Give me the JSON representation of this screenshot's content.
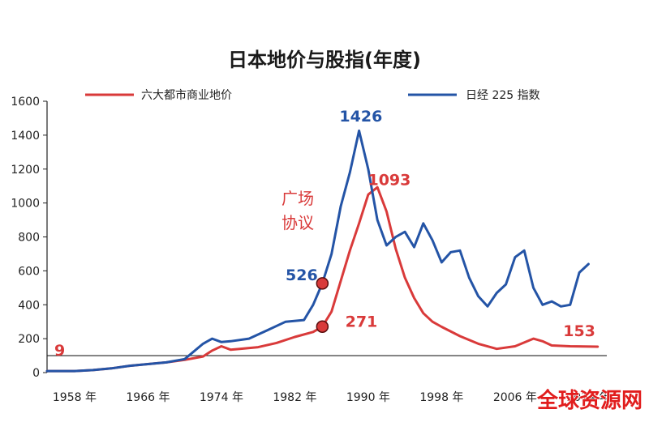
{
  "chart_data": {
    "type": "line",
    "title": "日本地价与股指(年度)",
    "xlabel": "",
    "ylabel": "",
    "ylim": [
      0,
      1600
    ],
    "xlim": [
      1955,
      2016
    ],
    "yticks": [
      "0",
      "200",
      "400",
      "600",
      "800",
      "1000",
      "1200",
      "1400",
      "1600"
    ],
    "xticks": [
      {
        "year": 1958,
        "label": "1958 年"
      },
      {
        "year": 1966,
        "label": "1966 年"
      },
      {
        "year": 1974,
        "label": "1974 年"
      },
      {
        "year": 1982,
        "label": "1982 年"
      },
      {
        "year": 1990,
        "label": "1990 年"
      },
      {
        "year": 1998,
        "label": "1998 年"
      },
      {
        "year": 2006,
        "label": "2006 年"
      },
      {
        "year": 2014,
        "label": "2014 年"
      }
    ],
    "reference_line": 100,
    "grid": false,
    "legend_position": "top",
    "series": [
      {
        "name": "六大都市商业地价",
        "color": "#d93a3a",
        "points": [
          [
            1955,
            9
          ],
          [
            1958,
            9
          ],
          [
            1960,
            15
          ],
          [
            1962,
            25
          ],
          [
            1964,
            40
          ],
          [
            1966,
            50
          ],
          [
            1968,
            60
          ],
          [
            1970,
            75
          ],
          [
            1972,
            95
          ],
          [
            1973,
            130
          ],
          [
            1974,
            155
          ],
          [
            1975,
            135
          ],
          [
            1976,
            140
          ],
          [
            1978,
            150
          ],
          [
            1980,
            175
          ],
          [
            1982,
            210
          ],
          [
            1984,
            240
          ],
          [
            1985,
            271
          ],
          [
            1986,
            360
          ],
          [
            1987,
            540
          ],
          [
            1988,
            720
          ],
          [
            1989,
            880
          ],
          [
            1990,
            1050
          ],
          [
            1991,
            1093
          ],
          [
            1992,
            950
          ],
          [
            1993,
            730
          ],
          [
            1994,
            560
          ],
          [
            1995,
            440
          ],
          [
            1996,
            350
          ],
          [
            1997,
            300
          ],
          [
            1998,
            270
          ],
          [
            2000,
            215
          ],
          [
            2002,
            170
          ],
          [
            2004,
            140
          ],
          [
            2006,
            155
          ],
          [
            2008,
            200
          ],
          [
            2009,
            185
          ],
          [
            2010,
            160
          ],
          [
            2012,
            155
          ],
          [
            2015,
            153
          ]
        ]
      },
      {
        "name": "日经 225 指数",
        "color": "#2454a6",
        "points": [
          [
            1955,
            9
          ],
          [
            1958,
            9
          ],
          [
            1960,
            15
          ],
          [
            1962,
            25
          ],
          [
            1964,
            40
          ],
          [
            1966,
            50
          ],
          [
            1968,
            60
          ],
          [
            1970,
            80
          ],
          [
            1972,
            170
          ],
          [
            1973,
            200
          ],
          [
            1974,
            180
          ],
          [
            1975,
            185
          ],
          [
            1977,
            200
          ],
          [
            1979,
            250
          ],
          [
            1981,
            300
          ],
          [
            1983,
            310
          ],
          [
            1984,
            400
          ],
          [
            1985,
            526
          ],
          [
            1986,
            700
          ],
          [
            1987,
            980
          ],
          [
            1988,
            1180
          ],
          [
            1989,
            1426
          ],
          [
            1990,
            1200
          ],
          [
            1991,
            900
          ],
          [
            1992,
            750
          ],
          [
            1993,
            800
          ],
          [
            1994,
            830
          ],
          [
            1995,
            740
          ],
          [
            1996,
            880
          ],
          [
            1997,
            780
          ],
          [
            1998,
            650
          ],
          [
            1999,
            710
          ],
          [
            2000,
            720
          ],
          [
            2001,
            560
          ],
          [
            2002,
            450
          ],
          [
            2003,
            390
          ],
          [
            2004,
            470
          ],
          [
            2005,
            520
          ],
          [
            2006,
            680
          ],
          [
            2007,
            720
          ],
          [
            2008,
            500
          ],
          [
            2009,
            400
          ],
          [
            2010,
            420
          ],
          [
            2011,
            390
          ],
          [
            2012,
            400
          ],
          [
            2013,
            590
          ],
          [
            2014,
            640
          ]
        ]
      }
    ],
    "annotations": [
      {
        "text": "9",
        "x": 1955.8,
        "y": 100,
        "color": "#d93a3a",
        "anchor": "start"
      },
      {
        "text": "271",
        "x": 1987.5,
        "y": 270,
        "color": "#d93a3a",
        "anchor": "start"
      },
      {
        "text": "526",
        "x": 1984.5,
        "y": 545,
        "color": "#2454a6",
        "anchor": "end"
      },
      {
        "text": "1426",
        "x": 1989.2,
        "y": 1480,
        "color": "#2454a6",
        "anchor": "middle"
      },
      {
        "text": "1093",
        "x": 1992.3,
        "y": 1105,
        "color": "#d93a3a",
        "anchor": "middle"
      },
      {
        "text": "153",
        "x": 2013.0,
        "y": 215,
        "color": "#d93a3a",
        "anchor": "middle"
      }
    ],
    "marker_points": [
      {
        "x": 1985,
        "y": 526
      },
      {
        "x": 1985,
        "y": 271
      }
    ],
    "callout_lines": [
      "广场",
      "协议"
    ]
  },
  "watermark": "全球资源网"
}
